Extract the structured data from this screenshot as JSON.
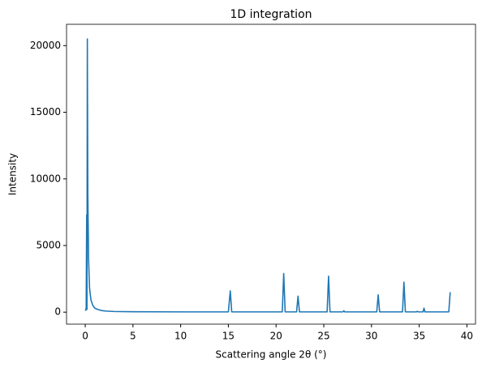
{
  "chart_data": {
    "type": "line",
    "title": "1D integration",
    "x_label": "Scattering angle 2θ (°)",
    "y_label": "Intensity",
    "x": [
      0.02,
      0.1,
      0.15,
      0.18,
      0.22,
      0.27,
      0.35,
      0.45,
      0.6,
      0.8,
      1.0,
      1.3,
      1.7,
      2.2,
      3,
      5,
      10,
      15.0,
      15.2,
      15.35,
      20.65,
      20.8,
      20.95,
      22.15,
      22.3,
      22.45,
      24.5,
      25.35,
      25.5,
      25.65,
      27.0,
      27.1,
      27.2,
      30.55,
      30.7,
      30.85,
      33.25,
      33.4,
      33.55,
      34.7,
      34.8,
      34.9,
      35.4,
      35.5,
      35.6,
      38.1,
      38.25
    ],
    "series": [
      {
        "color": "#1f77b4",
        "values": [
          100,
          300,
          7300,
          200,
          20500,
          9000,
          4000,
          1800,
          900,
          500,
          300,
          200,
          120,
          80,
          50,
          30,
          20,
          20,
          1600,
          20,
          20,
          2900,
          20,
          20,
          1200,
          20,
          20,
          20,
          2700,
          20,
          20,
          100,
          20,
          20,
          1300,
          20,
          20,
          2250,
          20,
          20,
          60,
          20,
          20,
          300,
          20,
          20,
          1500
        ]
      }
    ],
    "xlim": [
      -1.96,
      40.9
    ],
    "ylim": [
      -900,
      21600
    ],
    "xticks": [
      0,
      5,
      10,
      15,
      20,
      25,
      30,
      35,
      40
    ],
    "yticks": [
      0,
      5000,
      10000,
      15000,
      20000
    ]
  }
}
